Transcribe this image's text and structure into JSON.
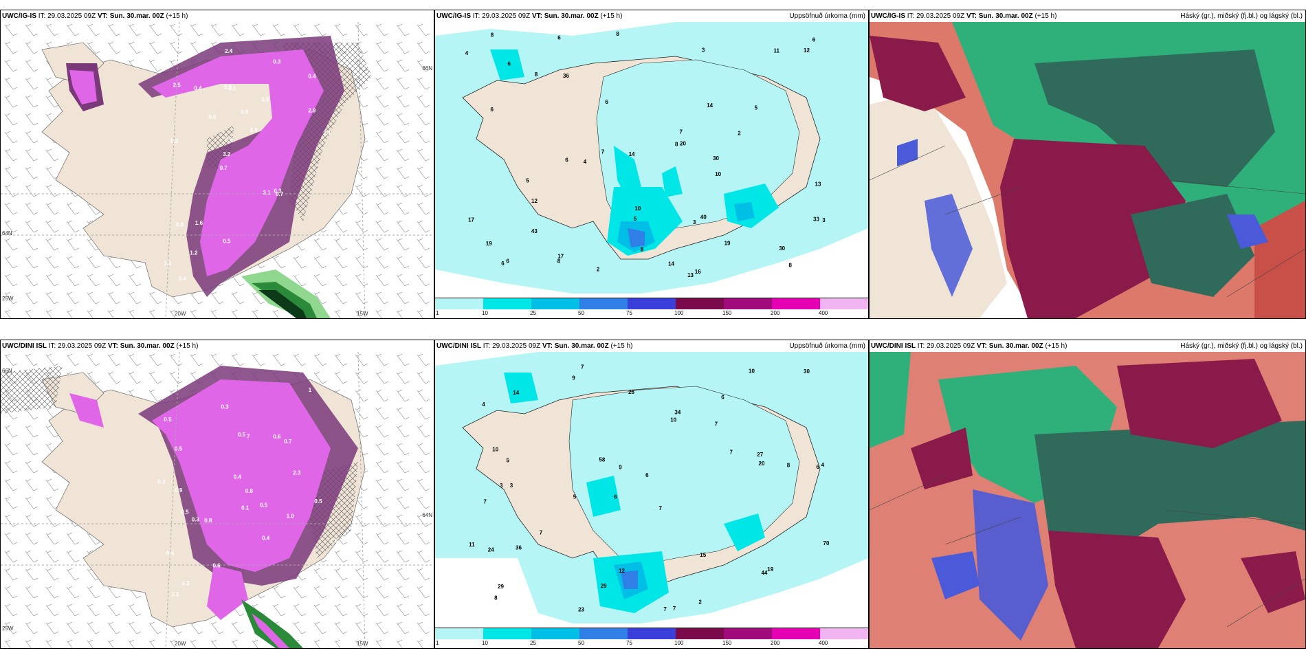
{
  "rows": [
    {
      "model": "UWC/IG-IS",
      "it_label": "IT:",
      "it_value": "29.03.2025 09Z",
      "vt_label": "VT:",
      "vt_value": "Sun. 30.mar. 00Z",
      "lead": "(+15 h)",
      "axis": {
        "lon_a": "20W",
        "lon_b": "15W",
        "lat_a": "66N",
        "lat_b": "64N",
        "lon_left": "25W"
      },
      "left_values": [
        "0.8",
        "0.3",
        "0.4",
        "0.7",
        "0.5",
        "0.4",
        "0.3",
        "0.5",
        "0.8",
        "0.6",
        "1.3",
        "1.2",
        "1.1",
        "0.9",
        "0.7",
        "2.5",
        "2.4",
        "2.1",
        "3.1",
        "2.9",
        "3.2",
        "0.5",
        "0.6",
        "0.4",
        "0.3",
        "1.6",
        "0.8",
        "0.8",
        "0.3"
      ],
      "mid_values": [
        "2",
        "13",
        "17",
        "19",
        "6",
        "6",
        "6",
        "8",
        "8",
        "6",
        "11",
        "8",
        "7",
        "5",
        "3",
        "8",
        "6",
        "8",
        "4",
        "4",
        "3",
        "6",
        "7",
        "6",
        "5",
        "5",
        "17",
        "12",
        "8",
        "10",
        "14",
        "16",
        "10",
        "12",
        "43",
        "30",
        "33",
        "19",
        "14",
        "30",
        "20",
        "2",
        "3",
        "6",
        "36",
        "40",
        "13",
        "14",
        "8"
      ],
      "blobs": "ig"
    },
    {
      "model": "UWC/DINI ISL",
      "it_label": "IT:",
      "it_value": "29.03.2025 09Z",
      "vt_label": "VT:",
      "vt_value": "Sun. 30.mar. 00Z",
      "lead": "(+15 h)",
      "axis": {
        "lon_a": "20W",
        "lon_b": "15W",
        "lat_a": "66N",
        "lat_b": "64N",
        "lon_left": "25W"
      },
      "left_values": [
        "0.8",
        "0.5",
        "0.4",
        "0.5",
        "0.4",
        "0.5",
        "0.3",
        "0.8",
        "0.7",
        "0.5",
        "0.6",
        "0.9",
        "0.6",
        "0.3",
        "0.5",
        "0.4",
        "1.0",
        "0.8",
        "0.3",
        "3.2",
        "1",
        "7",
        "2.3",
        "1.6",
        "0.5",
        "0.9",
        "0.3",
        "0.1",
        "0.4"
      ],
      "mid_values": [
        "7",
        "6",
        "6",
        "6",
        "7",
        "3",
        "4",
        "7",
        "7",
        "10",
        "6",
        "8",
        "9",
        "5",
        "7",
        "7",
        "12",
        "10",
        "7",
        "7",
        "5",
        "3",
        "4",
        "8",
        "11",
        "10",
        "9",
        "20",
        "19",
        "24",
        "44",
        "34",
        "36",
        "58",
        "15",
        "70",
        "27",
        "29",
        "30",
        "26",
        "29",
        "23",
        "2",
        "14"
      ],
      "blobs": "dini"
    }
  ],
  "precip_title": "Uppsöfnuð úrkoma (mm)",
  "cloud_title": "Háský (gr.), miðský (fj.bl.) og lágský (bl.)",
  "colorbar": {
    "labels": [
      "1",
      "10",
      "25",
      "50",
      "75",
      "100",
      "150",
      "200",
      "400"
    ],
    "colors": [
      "#b5f5f5",
      "#00e6e6",
      "#00bfe6",
      "#2f7fe6",
      "#3a3fd9",
      "#7a0a4a",
      "#a00a7a",
      "#e600b4",
      "#f0b4f0"
    ]
  },
  "colors": {
    "land": "#f0e4d6",
    "sea": "#ffffff",
    "precip_light": "#b5f5f5",
    "magenta": "#e066e8",
    "purple": "#7a3a7a",
    "green": "#2a8a3a",
    "maroon": "#8a1a4a",
    "cloudgreen": "#1fae7a",
    "blue": "#4a5ad8"
  }
}
